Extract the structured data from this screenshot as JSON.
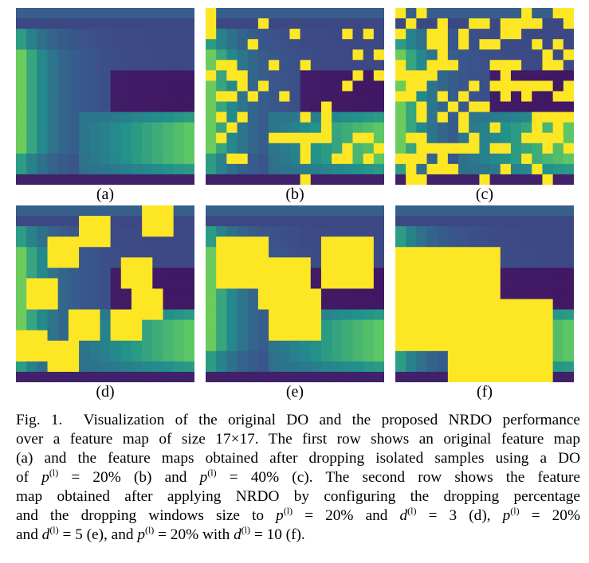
{
  "panels": [
    {
      "label": "(a)"
    },
    {
      "label": "(b)"
    },
    {
      "label": "(c)"
    },
    {
      "label": "(d)"
    },
    {
      "label": "(e)"
    },
    {
      "label": "(f)"
    }
  ],
  "caption": {
    "lines": [
      [
        "Fig. 1.  Visualization of the original DO and the proposed NRDO performance"
      ],
      [
        "over a feature map of size 17×17. The first row shows an original feature map"
      ],
      [
        "(a) and the feature maps obtained after dropping isolated samples using a DO"
      ],
      [
        "of ",
        {
          "var": "p",
          "sup": "(l)"
        },
        " = 20% (b) and ",
        {
          "var": "p",
          "sup": "(l)"
        },
        " = 40% (c). The second row shows the feature"
      ],
      [
        "map obtained after applying NRDO by configuring the dropping percentage"
      ],
      [
        "and the dropping windows size to ",
        {
          "var": "p",
          "sup": "(l)"
        },
        " = 20% and ",
        {
          "var": "d",
          "sup": "(l)"
        },
        " = 3 (d), ",
        {
          "var": "p",
          "sup": "(l)"
        },
        " = 20%"
      ],
      [
        "and ",
        {
          "var": "d",
          "sup": "(l)"
        },
        " = 5 (e), and ",
        {
          "var": "p",
          "sup": "(l)"
        },
        " = 20% with ",
        {
          "var": "d",
          "sup": "(l)"
        },
        " = 10 (f)."
      ]
    ]
  }
}
